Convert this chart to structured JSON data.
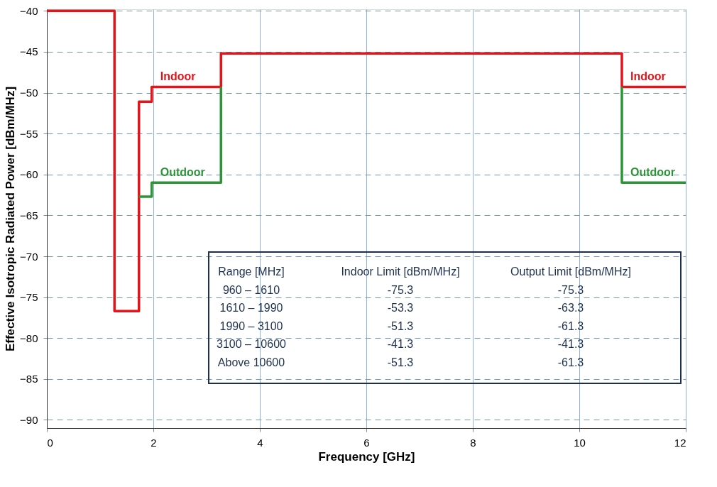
{
  "chart_data": {
    "type": "step",
    "xlabel": "Frequency [GHz]",
    "ylabel": "Effective Isotropic Radiated Power [dBm/MHz]",
    "series": [
      {
        "name": "Indoor",
        "color": "#e5141b",
        "x": [
          0,
          1.27,
          1.73,
          1.97,
          3.27,
          10.8,
          12
        ],
        "values": [
          -40,
          -76.7,
          -51.1,
          -49.3,
          -45.2,
          -49.3,
          -49.3
        ]
      },
      {
        "name": "Outdoor",
        "color": "#2e9438",
        "x": [
          1.73,
          1.97,
          3.27,
          7,
          10.8,
          10.8,
          12
        ],
        "values": [
          -62.7,
          -61,
          -49.3,
          null,
          -49.3,
          -61,
          -61
        ]
      }
    ],
    "xlim": [
      0,
      12
    ],
    "xticks": [
      0,
      2,
      4,
      6,
      8,
      10,
      12
    ],
    "ylim": [
      -91,
      -39.8
    ],
    "yticks": [
      -40,
      -45,
      -50,
      -55,
      -60,
      -65,
      -70,
      -75,
      -80,
      -85,
      -90
    ],
    "grid": true,
    "annotations": [
      "Range [MHz]",
      "Indoor Limit [dBm/MHz]",
      "Output Limit [dBm/MHz]",
      "960 – 1610",
      "-75.3",
      "-75.3",
      "1610 – 1990",
      "-53.3",
      "-63.3",
      "1990 – 3100",
      "-51.3",
      "-61.3",
      "3100 – 10600",
      "-41.3",
      "-41.3",
      "Above 10600",
      "-51.3",
      "-61.3"
    ]
  }
}
